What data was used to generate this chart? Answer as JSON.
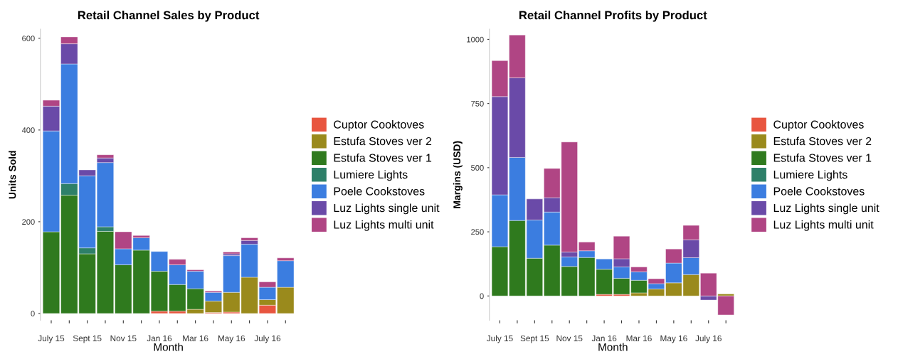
{
  "chart_data": [
    {
      "type": "bar",
      "stacked": true,
      "title": "Retail Channel Sales by Product",
      "xlabel": "Month",
      "ylabel": "Units Sold",
      "ylim": [
        -15,
        620
      ],
      "categories": [
        "July 15",
        null,
        "Sept 15",
        null,
        "Nov 15",
        null,
        "Jan 16",
        null,
        "Mar 16",
        null,
        "May 16",
        null,
        "July 16",
        null
      ],
      "yticks": [
        0,
        200,
        400,
        600
      ],
      "grid": false,
      "legend": "right",
      "series": [
        {
          "name": "Cuptor Cooktoves",
          "color": "#e8553f",
          "values": [
            null,
            null,
            null,
            null,
            null,
            null,
            5,
            5,
            null,
            2,
            3,
            null,
            18,
            null
          ]
        },
        {
          "name": "Estufa Stoves ver 2",
          "color": "#9a8a1c",
          "values": [
            null,
            null,
            null,
            null,
            null,
            null,
            null,
            null,
            9,
            25,
            43,
            79,
            12,
            57
          ]
        },
        {
          "name": "Estufa Stoves ver 1",
          "color": "#2f7a1e",
          "values": [
            178,
            258,
            130,
            179,
            106,
            138,
            87,
            58,
            45,
            null,
            null,
            null,
            null,
            null
          ]
        },
        {
          "name": "Lumiere Lights",
          "color": "#2e8069",
          "values": [
            null,
            25,
            13,
            10,
            null,
            null,
            null,
            null,
            null,
            null,
            null,
            null,
            null,
            null
          ]
        },
        {
          "name": "Poele Cookstoves",
          "color": "#3b7de0",
          "values": [
            220,
            261,
            157,
            140,
            35,
            27,
            43,
            43,
            38,
            19,
            80,
            72,
            27,
            58
          ]
        },
        {
          "name": "Luz Lights single unit",
          "color": "#6a4aa8",
          "values": [
            54,
            44,
            13,
            10,
            null,
            null,
            null,
            null,
            null,
            null,
            4,
            8,
            null,
            null
          ]
        },
        {
          "name": "Luz Lights multi unit",
          "color": "#b04584",
          "values": [
            13,
            15,
            null,
            7,
            37,
            5,
            null,
            12,
            3,
            3,
            4,
            6,
            12,
            6
          ]
        }
      ]
    },
    {
      "type": "bar",
      "stacked": true,
      "title": "Retail Channel Profits by Product",
      "xlabel": "Month",
      "ylabel": "Margins (USD)",
      "ylim": [
        -95,
        1040
      ],
      "categories": [
        "July 15",
        null,
        "Sept 15",
        null,
        "Nov 15",
        null,
        "Jan 16",
        null,
        "Mar 16",
        null,
        "May 16",
        null,
        "July 16",
        null
      ],
      "yticks": [
        0,
        250,
        500,
        750,
        1000
      ],
      "grid": false,
      "legend": "right",
      "series": [
        {
          "name": "Cuptor Cooktoves",
          "color": "#e8553f",
          "values": [
            null,
            null,
            null,
            null,
            null,
            null,
            6,
            6,
            null,
            null,
            null,
            null,
            null,
            null
          ]
        },
        {
          "name": "Estufa Stoves ver 2",
          "color": "#9a8a1c",
          "values": [
            null,
            null,
            null,
            null,
            null,
            null,
            null,
            null,
            12,
            27,
            51,
            83,
            null,
            8
          ]
        },
        {
          "name": "Estufa Stoves ver 1",
          "color": "#2f7a1e",
          "values": [
            192,
            294,
            147,
            198,
            115,
            150,
            98,
            63,
            49,
            null,
            null,
            null,
            null,
            null
          ]
        },
        {
          "name": "Lumiere Lights",
          "color": "#2e8069",
          "values": [
            null,
            null,
            null,
            null,
            null,
            null,
            null,
            null,
            null,
            null,
            null,
            null,
            null,
            null
          ]
        },
        {
          "name": "Poele Cookstoves",
          "color": "#3b7de0",
          "values": [
            202,
            246,
            149,
            129,
            37,
            26,
            40,
            44,
            33,
            21,
            77,
            66,
            null,
            null
          ]
        },
        {
          "name": "Luz Lights single unit",
          "color": "#6a4aa8",
          "values": [
            383,
            310,
            82,
            56,
            19,
            null,
            null,
            32,
            null,
            null,
            null,
            70,
            -16,
            null
          ]
        },
        {
          "name": "Luz Lights multi unit",
          "color": "#b04584",
          "values": [
            140,
            167,
            null,
            114,
            429,
            34,
            null,
            88,
            19,
            19,
            55,
            56,
            89,
            -74
          ]
        }
      ]
    }
  ]
}
